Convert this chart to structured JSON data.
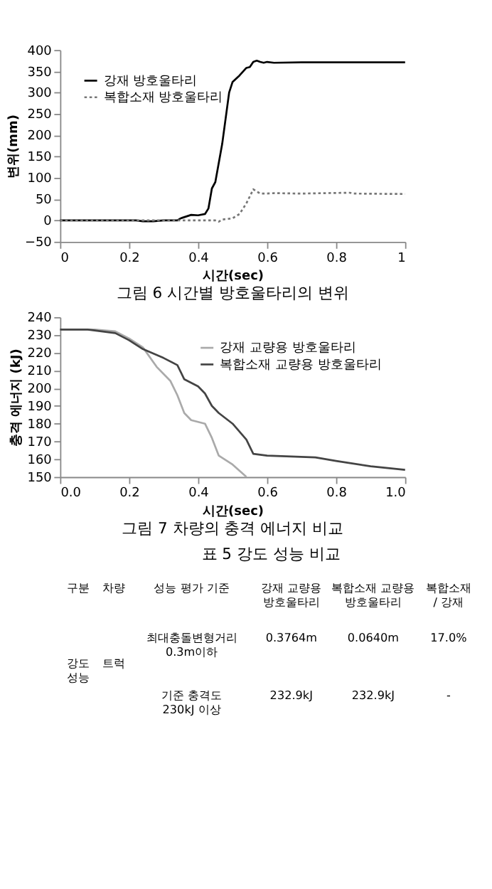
{
  "chart_data": [
    {
      "type": "line",
      "title": "그림 6 시간별 방호울타리의 변위",
      "xlabel": "시간(sec)",
      "ylabel": "변위(mm)",
      "xlim": [
        0,
        1
      ],
      "xticks": [
        0,
        0.2,
        0.4,
        0.6,
        0.8,
        1
      ],
      "ylim": [
        -50,
        400
      ],
      "yticks": [
        -50,
        0,
        50,
        100,
        150,
        200,
        250,
        300,
        350,
        400
      ],
      "grid": false,
      "legend": "top left",
      "marker": "none",
      "series": [
        {
          "name": "강재 방호울타리",
          "color": "#000000",
          "line_style": "solid",
          "x": [
            0,
            0.22,
            0.24,
            0.27,
            0.3,
            0.34,
            0.35,
            0.38,
            0.4,
            0.42,
            0.43,
            0.44,
            0.45,
            0.47,
            0.49,
            0.5,
            0.52,
            0.54,
            0.55,
            0.56,
            0.57,
            0.58,
            0.59,
            0.6,
            0.62,
            0.7,
            1.0
          ],
          "values": [
            0,
            0,
            -2,
            -2,
            0,
            0,
            5,
            13,
            12,
            15,
            28,
            75,
            90,
            180,
            300,
            325,
            340,
            358,
            360,
            372,
            375,
            372,
            370,
            372,
            370,
            371,
            371
          ]
        },
        {
          "name": "복합소재 방호울타리",
          "color": "#777777",
          "line_style": "dotted",
          "x": [
            0,
            0.45,
            0.46,
            0.47,
            0.5,
            0.52,
            0.54,
            0.56,
            0.58,
            0.6,
            0.62,
            0.7,
            0.84,
            0.85,
            1.0
          ],
          "values": [
            0,
            0,
            -3,
            2,
            5,
            15,
            40,
            73,
            63,
            63,
            64,
            63,
            65,
            63,
            62
          ]
        }
      ]
    },
    {
      "type": "line",
      "title": "그림 7 차량의 충격 에너지 비교",
      "xlabel": "시간(sec)",
      "ylabel": "충격 에너지 (kJ)",
      "xlim": [
        0,
        1
      ],
      "xticks": [
        {
          "value": 0,
          "label": "0.0"
        },
        {
          "value": 0.2,
          "label": "0.2"
        },
        {
          "value": 0.4,
          "label": "0.4"
        },
        {
          "value": 0.6,
          "label": "0.6"
        },
        {
          "value": 0.8,
          "label": "0.8"
        },
        {
          "value": 1,
          "label": "1.0"
        }
      ],
      "ylim": [
        150,
        240
      ],
      "yticks": [
        150,
        160,
        170,
        180,
        190,
        200,
        210,
        220,
        230,
        240
      ],
      "grid": false,
      "legend": "top right",
      "marker": "none",
      "series": [
        {
          "name": "강재 교량용 방호울타리",
          "color": "#aaaaaa",
          "line_style": "solid",
          "x": [
            0,
            0.1,
            0.16,
            0.2,
            0.24,
            0.28,
            0.32,
            0.34,
            0.36,
            0.38,
            0.42,
            0.44,
            0.46,
            0.5,
            0.54
          ],
          "values": [
            233,
            233,
            232,
            228,
            223,
            212,
            204,
            196,
            186,
            182,
            180,
            172,
            162,
            157,
            150
          ]
        },
        {
          "name": "복합소재 교량용 방호울타리",
          "color": "#444444",
          "line_style": "solid",
          "x": [
            0,
            0.08,
            0.16,
            0.2,
            0.24,
            0.3,
            0.34,
            0.36,
            0.4,
            0.42,
            0.44,
            0.46,
            0.5,
            0.54,
            0.56,
            0.6,
            0.74,
            0.8,
            0.9,
            1.0
          ],
          "values": [
            233,
            233,
            231,
            227,
            222,
            217,
            213,
            205,
            201,
            197,
            190,
            186,
            180,
            171,
            163,
            162,
            161,
            159,
            156,
            154
          ]
        }
      ]
    },
    {
      "type": "other",
      "title": "표 5 강도 성능 비교",
      "annotations": [
        "구분",
        "차량",
        "성능 평가 기준",
        "강재 교량용\n방호울타리",
        "복합소재 교량용\n방호울타리",
        "복합소재\n/ 강재",
        "강도\n성능",
        "트럭",
        "최대충돌변형거리\n0.3m이하",
        "0.3764m",
        "0.0640m",
        "17.0%",
        "기준 충격도\n230kJ 이상",
        "232.9kJ",
        "232.9kJ",
        "-"
      ]
    }
  ]
}
